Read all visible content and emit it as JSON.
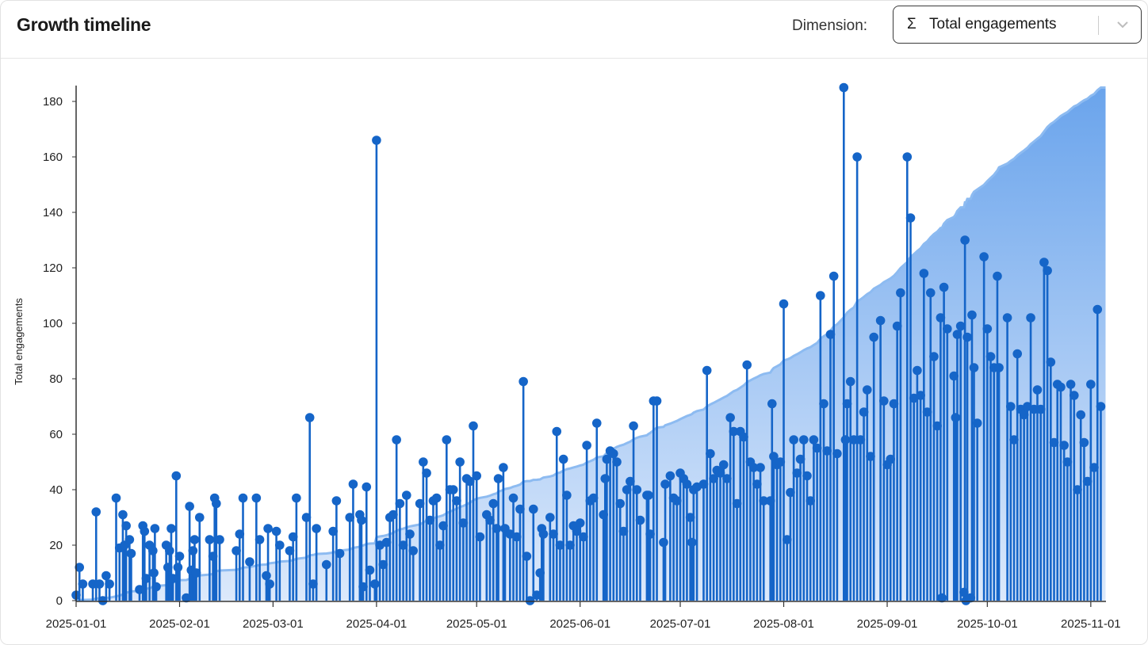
{
  "header": {
    "title": "Growth timeline",
    "dimension_label": "Dimension:",
    "dimension_icon": "sigma-icon",
    "dimension_sigma": "Σ",
    "dimension_value": "Total engagements"
  },
  "colors": {
    "stem": "#1565c8",
    "area_top": "#6aa4ec",
    "area_bottom": "#dce9fb",
    "area_line": "#8dbbf1"
  },
  "chart_data": {
    "type": "line",
    "subtype": "lollipop-with-cumulative-area",
    "ylabel": "Total engagements",
    "xlabel": "",
    "ylim": [
      0,
      185
    ],
    "yticks": [
      0,
      20,
      40,
      60,
      80,
      100,
      120,
      140,
      160,
      180
    ],
    "ytick_labels": [
      "0",
      "20",
      "40",
      "60",
      "80",
      "100",
      "120",
      "140",
      "160",
      "180"
    ],
    "x_start": "2025-01-01",
    "xtick_days": [
      0,
      31,
      59,
      90,
      120,
      151,
      181,
      212,
      243,
      273,
      304
    ],
    "xtick_labels": [
      "2025-01-01",
      "2025-02-01",
      "2025-03-01",
      "2025-04-01",
      "2025-05-01",
      "2025-06-01",
      "2025-07-01",
      "2025-08-01",
      "2025-09-01",
      "2025-10-01",
      "2025-11-01"
    ],
    "x_days": [
      0,
      1,
      2,
      5,
      6,
      7,
      8,
      9,
      10,
      12,
      13,
      14,
      14.5,
      15,
      16,
      16.5,
      19,
      20,
      20.5,
      21,
      22,
      23,
      23.3,
      23.6,
      24,
      27,
      27.5,
      28,
      28.5,
      29,
      30,
      30.5,
      31,
      33,
      34,
      34.5,
      35,
      35.5,
      36,
      37,
      40,
      41,
      41.5,
      42,
      43,
      48,
      49,
      50,
      52,
      54,
      55,
      57,
      57.5,
      58,
      60,
      61,
      64,
      65,
      66,
      69,
      70,
      71,
      72,
      75,
      77,
      78,
      79,
      82,
      83,
      85,
      85.5,
      86,
      87,
      88,
      89.5,
      90,
      91,
      92,
      93,
      94,
      95,
      96,
      97,
      98,
      99,
      100,
      101,
      103,
      104,
      105,
      106,
      107,
      108,
      109,
      110,
      111,
      112,
      113,
      114,
      115,
      116,
      117,
      118,
      119,
      120,
      121,
      123,
      124,
      125,
      126,
      126.5,
      128,
      128.5,
      130,
      131,
      132,
      133,
      134,
      135,
      136,
      137,
      138,
      139,
      139.5,
      140,
      142,
      143,
      144,
      145,
      146,
      147,
      148,
      149,
      150,
      151,
      152,
      153,
      154,
      155,
      156,
      158,
      158.5,
      159,
      160,
      161,
      162,
      163,
      164,
      165,
      166,
      167,
      168,
      169,
      171,
      171.5,
      172,
      173,
      174,
      176,
      176.5,
      178,
      179,
      180,
      181,
      182,
      183,
      184,
      184.5,
      185,
      186,
      188,
      189,
      190,
      191,
      192,
      193,
      194,
      195,
      196,
      197,
      198,
      199,
      200,
      201,
      202,
      203,
      204,
      205,
      206,
      208,
      208.5,
      209,
      210,
      211,
      212,
      213,
      214,
      215,
      216,
      217,
      218,
      219,
      220,
      221,
      222,
      223,
      224,
      225,
      226,
      227,
      228,
      230,
      230.5,
      231,
      232,
      233,
      234,
      235,
      236,
      237,
      238,
      239,
      241,
      242,
      243,
      244,
      245,
      246,
      247,
      249,
      250,
      251,
      252,
      253,
      254,
      255,
      256,
      257,
      258,
      259,
      259.4,
      260,
      261,
      263,
      263.5,
      264,
      265,
      266,
      266.3,
      266.6,
      267,
      268,
      268.4,
      269,
      270,
      272,
      273,
      274,
      275,
      276,
      276.5,
      279,
      280,
      281,
      282,
      283,
      284,
      285,
      286,
      287,
      288,
      289,
      290,
      291,
      292,
      293,
      294,
      295,
      296,
      297,
      298,
      299,
      300,
      301,
      302,
      303,
      304,
      305,
      306,
      307
    ],
    "values": [
      2,
      12,
      6,
      6,
      32,
      6,
      0,
      9,
      6,
      37,
      19,
      31,
      20,
      27,
      22,
      17,
      4,
      27,
      25,
      8,
      20,
      18,
      10,
      26,
      5,
      20,
      12,
      18,
      26,
      8,
      45,
      12,
      16,
      1,
      34,
      11,
      18,
      22,
      10,
      30,
      22,
      16,
      37,
      35,
      22,
      18,
      24,
      37,
      14,
      37,
      22,
      9,
      26,
      6,
      25,
      20,
      18,
      23,
      37,
      30,
      66,
      6,
      26,
      13,
      25,
      36,
      17,
      30,
      42,
      31,
      29,
      5,
      41,
      11,
      6,
      166,
      20,
      13,
      21,
      30,
      31,
      58,
      35,
      20,
      38,
      24,
      18,
      35,
      50,
      46,
      29,
      36,
      37,
      20,
      27,
      58,
      40,
      40,
      36,
      50,
      28,
      44,
      43,
      63,
      45,
      23,
      31,
      29,
      35,
      26,
      44,
      48,
      26,
      24,
      37,
      23,
      33,
      79,
      16,
      0,
      33,
      2,
      10,
      26,
      24,
      30,
      24,
      61,
      20,
      51,
      38,
      20,
      27,
      25,
      28,
      23,
      56,
      36,
      37,
      64,
      31,
      44,
      51,
      54,
      53,
      50,
      35,
      25,
      40,
      43,
      63,
      40,
      29,
      38,
      38,
      24,
      72,
      72,
      21,
      42,
      45,
      37,
      36,
      46,
      44,
      42,
      30,
      21,
      40,
      41,
      42,
      83,
      53,
      44,
      47,
      46,
      49,
      44,
      66,
      61,
      35,
      61,
      59,
      85,
      50,
      48,
      42,
      48,
      36,
      36,
      71,
      52,
      49,
      50,
      107,
      22,
      39,
      58,
      46,
      51,
      58,
      45,
      36,
      58,
      55,
      110,
      71,
      54,
      96,
      117,
      53,
      185,
      58,
      71,
      79,
      58,
      160,
      58,
      68,
      76,
      52,
      95,
      101,
      72,
      49,
      51,
      71,
      99,
      111,
      160,
      138,
      73,
      83,
      74,
      118,
      68,
      111,
      88,
      63,
      102,
      1,
      113,
      98,
      81,
      66,
      96,
      99,
      3,
      130,
      0,
      95,
      1,
      103,
      84,
      64,
      124,
      98,
      88,
      84,
      117,
      84,
      102,
      70,
      58,
      89,
      69,
      67,
      70,
      102,
      69,
      76,
      69,
      122,
      119,
      86,
      57,
      78,
      77,
      56,
      50,
      78,
      74,
      40,
      67,
      57,
      43,
      78,
      48,
      105,
      70
    ],
    "area": "cumulative sum of values, scaled to the maximum value",
    "grid": false,
    "legend": "none"
  }
}
